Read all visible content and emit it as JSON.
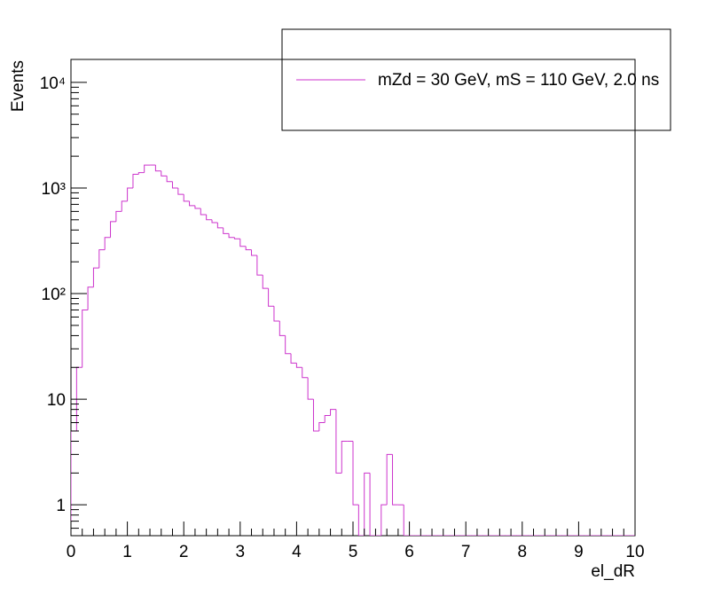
{
  "chart_data": {
    "type": "histogram",
    "x_label": "el_dR",
    "y_label": "Events",
    "log_y": true,
    "bins": [
      0,
      0.1,
      0.2,
      0.3,
      0.4,
      0.5,
      0.6,
      0.7,
      0.8,
      0.9,
      1,
      1.1,
      1.2,
      1.3,
      1.4,
      1.5,
      1.6,
      1.7,
      1.8,
      1.9,
      2,
      2.1,
      2.2,
      2.3,
      2.4,
      2.5,
      2.6,
      2.7,
      2.8,
      2.9,
      3,
      3.1,
      3.2,
      3.3,
      3.4,
      3.5,
      3.6,
      3.7,
      3.8,
      3.9,
      4,
      4.1,
      4.2,
      4.3,
      4.4,
      4.5,
      4.6,
      4.7,
      4.8,
      4.9,
      5,
      5.1,
      5.2,
      5.3,
      5.4,
      5.5,
      5.6,
      5.7,
      5.8,
      5.9,
      6,
      6.1,
      6.2,
      6.3,
      6.4,
      6.5,
      6.6,
      6.7,
      6.8,
      6.9,
      7,
      7.1,
      7.2,
      7.3,
      7.4,
      7.5,
      7.6,
      7.7,
      7.8,
      7.9,
      8,
      8.1,
      8.2,
      8.3,
      8.4,
      8.5,
      8.6,
      8.7,
      8.8,
      8.9,
      9,
      9.1,
      9.2,
      9.3,
      9.4,
      9.5,
      9.6,
      9.7,
      9.8,
      9.9,
      10
    ],
    "series": [
      {
        "name": "mZd = 30 GeV, mS = 110 GeV, 2.0 ns",
        "color": "#cc33cc",
        "values": [
          5,
          20,
          70,
          115,
          175,
          260,
          340,
          480,
          600,
          750,
          1000,
          1350,
          1400,
          1650,
          1650,
          1450,
          1300,
          1150,
          1000,
          870,
          750,
          680,
          640,
          560,
          500,
          470,
          420,
          370,
          340,
          330,
          280,
          260,
          230,
          150,
          112,
          76,
          55,
          40,
          27,
          22,
          20,
          16,
          10,
          5,
          6,
          7,
          8,
          2,
          4,
          4,
          1,
          0,
          2,
          0,
          0,
          1,
          3,
          1,
          1,
          0,
          0,
          0,
          0,
          0,
          0,
          0,
          0,
          0,
          0,
          0,
          0,
          0,
          0,
          0,
          0,
          0,
          0,
          0,
          0,
          0,
          0,
          0,
          0,
          0,
          0,
          0,
          0,
          0,
          0,
          0,
          0,
          0,
          0,
          0,
          0,
          0,
          0,
          0,
          0,
          0
        ]
      }
    ],
    "xlim": [
      0,
      10
    ],
    "xticks": [
      0,
      1,
      2,
      3,
      4,
      5,
      6,
      7,
      8,
      9,
      10
    ],
    "ylim": [
      0.51,
      16500
    ],
    "yticks": [
      1,
      10,
      {
        "value": 100,
        "label": "10²"
      },
      {
        "value": 1000,
        "label": "10³"
      },
      {
        "value": 10000,
        "label": "10⁴"
      }
    ],
    "legend": "top-right"
  }
}
